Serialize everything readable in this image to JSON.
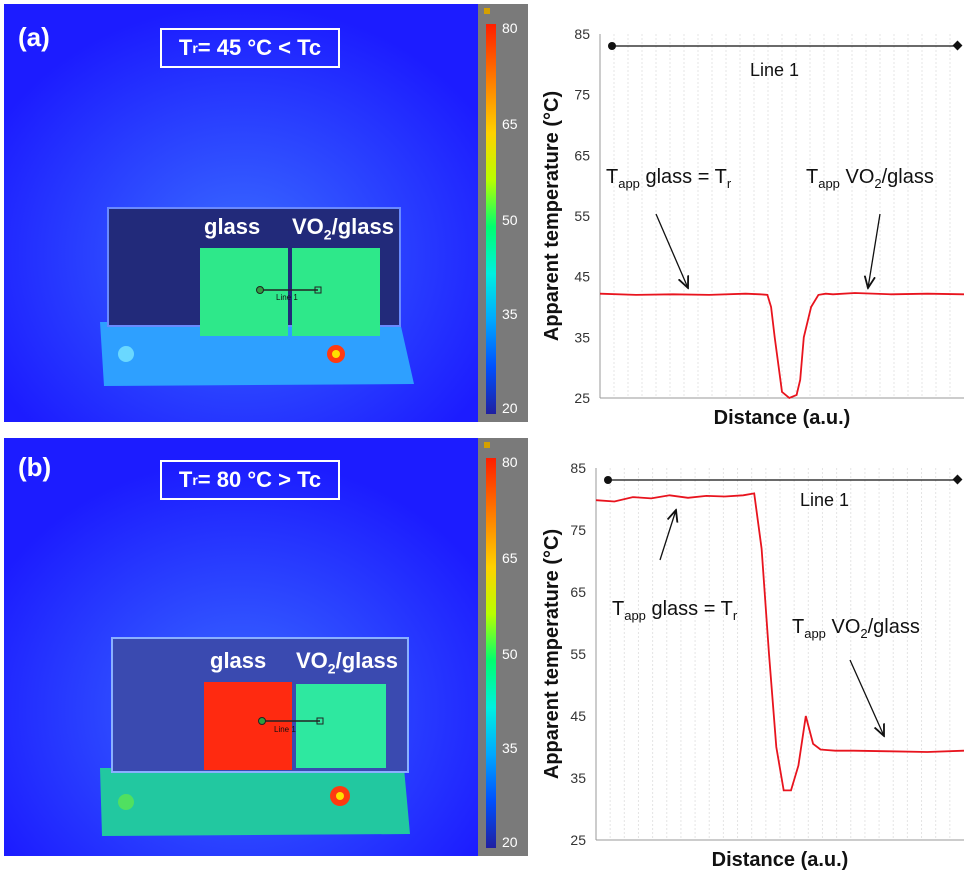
{
  "panels": [
    {
      "id": "a",
      "label": "(a)",
      "condition": {
        "prefix": "T",
        "sub": "r",
        "suffix": " = 45 °C < Tc"
      },
      "glass_label": "glass",
      "vo2_label": {
        "a": "VO",
        "sub": "2",
        "b": "/glass"
      },
      "line_label": "Line 1",
      "scale_ticks": [
        "80",
        "65",
        "50",
        "35",
        "20"
      ],
      "colors": {
        "glass": "#2ee88a",
        "vo2": "#2ee88a"
      }
    },
    {
      "id": "b",
      "label": "(b)",
      "condition": {
        "prefix": "T",
        "sub": "r",
        "suffix": " = 80 °C > Tc"
      },
      "glass_label": "glass",
      "vo2_label": {
        "a": "VO",
        "sub": "2",
        "b": "/glass"
      },
      "line_label": "Line 1",
      "scale_ticks": [
        "80",
        "65",
        "50",
        "35",
        "20"
      ],
      "colors": {
        "glass": "#ff2a10",
        "vo2": "#2ee8a0"
      }
    }
  ],
  "chart_data": [
    {
      "type": "line",
      "panel": "a",
      "xlabel": "Distance (a.u.)",
      "ylabel": "Apparent temperature (°C)",
      "ylim": [
        25,
        85
      ],
      "yticks": [
        25,
        35,
        45,
        55,
        65,
        75,
        85
      ],
      "xlim": [
        0,
        100
      ],
      "grid": "vertical",
      "line_label": "Line 1",
      "series": [
        {
          "color": "#e8141e",
          "x": [
            0,
            10,
            20,
            30,
            40,
            44,
            46,
            47,
            48,
            50,
            52,
            54,
            55,
            56,
            58,
            60,
            62,
            64,
            70,
            80,
            90,
            100
          ],
          "y": [
            42.2,
            42.0,
            42.1,
            42.0,
            42.2,
            42.1,
            42.0,
            40,
            35,
            26,
            25,
            25.5,
            28,
            35,
            40,
            42.0,
            42.2,
            42.1,
            42.3,
            42.1,
            42.2,
            42.1
          ]
        }
      ],
      "annotations": [
        {
          "text_a": "T",
          "sub_a": "app",
          "text_b": " glass = T",
          "sub_b": "r",
          "text_c": ""
        },
        {
          "text_a": "T",
          "sub_a": "app",
          "text_b": " VO",
          "sub_b": "2",
          "text_c": "/glass"
        }
      ]
    },
    {
      "type": "line",
      "panel": "b",
      "xlabel": "Distance (a.u.)",
      "ylabel": "Apparent temperature (°C)",
      "ylim": [
        25,
        85
      ],
      "yticks": [
        25,
        35,
        45,
        55,
        65,
        75,
        85
      ],
      "xlim": [
        0,
        100
      ],
      "grid": "vertical",
      "line_label": "Line 1",
      "series": [
        {
          "color": "#e8141e",
          "x": [
            0,
            5,
            10,
            15,
            20,
            25,
            30,
            35,
            40,
            43,
            45,
            47,
            49,
            51,
            53,
            55,
            57,
            59,
            61,
            63,
            65,
            70,
            80,
            90,
            100
          ],
          "y": [
            79.8,
            79.6,
            80.3,
            80.1,
            80.6,
            80.2,
            80.5,
            80.4,
            80.6,
            80.9,
            72,
            55,
            40,
            33,
            33,
            37,
            45,
            40.5,
            39.6,
            39.5,
            39.4,
            39.4,
            39.3,
            39.2,
            39.4
          ]
        }
      ],
      "annotations": [
        {
          "text_a": "T",
          "sub_a": "app",
          "text_b": " glass = T",
          "sub_b": "r",
          "text_c": ""
        },
        {
          "text_a": "T",
          "sub_a": "app",
          "text_b": " VO",
          "sub_b": "2",
          "text_c": "/glass"
        }
      ]
    }
  ]
}
